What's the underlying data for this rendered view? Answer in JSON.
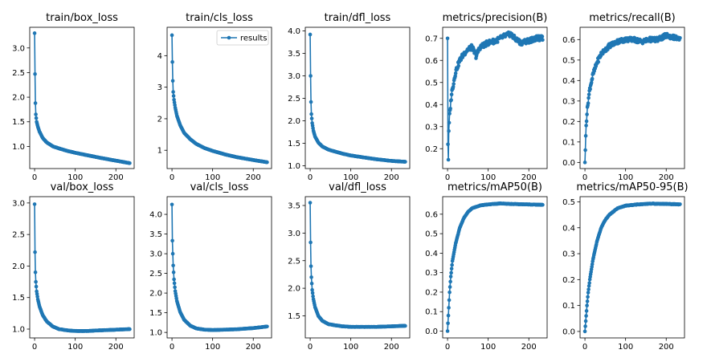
{
  "figure": {
    "legend_label": "results",
    "legend_location": "upper-right of second panel"
  },
  "colors": {
    "series": "#1f77b4",
    "axis": "#000000",
    "legend_border": "#cccccc"
  },
  "chart_data": [
    {
      "type": "line",
      "title": "train/box_loss",
      "xlim": [
        -12,
        245
      ],
      "ylim": [
        0.55,
        3.42
      ],
      "xticks": [
        0,
        100,
        200
      ],
      "yticks": [
        1.0,
        1.5,
        2.0,
        2.5,
        3.0
      ],
      "xticklabels": [
        "0",
        "100",
        "200"
      ],
      "yticklabels": [
        "1.0",
        "1.5",
        "2.0",
        "2.5",
        "3.0"
      ],
      "curve": {
        "kind": "decay",
        "n": 235,
        "points": [
          [
            0,
            3.3
          ],
          [
            1,
            2.47
          ],
          [
            2,
            1.88
          ],
          [
            3,
            1.65
          ],
          [
            5,
            1.5
          ],
          [
            8,
            1.4
          ],
          [
            12,
            1.3
          ],
          [
            20,
            1.17
          ],
          [
            30,
            1.08
          ],
          [
            45,
            1.0
          ],
          [
            60,
            0.96
          ],
          [
            80,
            0.91
          ],
          [
            100,
            0.87
          ],
          [
            130,
            0.82
          ],
          [
            160,
            0.77
          ],
          [
            200,
            0.71
          ],
          [
            234,
            0.66
          ]
        ]
      }
    },
    {
      "type": "line",
      "title": "train/cls_loss",
      "xlim": [
        -12,
        245
      ],
      "ylim": [
        0.42,
        4.9
      ],
      "xticks": [
        0,
        100,
        200
      ],
      "yticks": [
        1,
        2,
        3,
        4
      ],
      "xticklabels": [
        "0",
        "100",
        "200"
      ],
      "yticklabels": [
        "1",
        "2",
        "3",
        "4"
      ],
      "legend": true,
      "curve": {
        "kind": "decay",
        "n": 235,
        "points": [
          [
            0,
            4.65
          ],
          [
            1,
            3.8
          ],
          [
            2,
            3.2
          ],
          [
            3,
            2.85
          ],
          [
            5,
            2.6
          ],
          [
            8,
            2.35
          ],
          [
            12,
            2.1
          ],
          [
            20,
            1.8
          ],
          [
            30,
            1.55
          ],
          [
            45,
            1.35
          ],
          [
            60,
            1.2
          ],
          [
            80,
            1.07
          ],
          [
            100,
            0.98
          ],
          [
            130,
            0.87
          ],
          [
            160,
            0.78
          ],
          [
            200,
            0.69
          ],
          [
            234,
            0.62
          ]
        ]
      }
    },
    {
      "type": "line",
      "title": "train/dfl_loss",
      "xlim": [
        -12,
        245
      ],
      "ylim": [
        0.94,
        4.08
      ],
      "xticks": [
        0,
        100,
        200
      ],
      "yticks": [
        1.0,
        1.5,
        2.0,
        2.5,
        3.0,
        3.5,
        4.0
      ],
      "xticklabels": [
        "0",
        "100",
        "200"
      ],
      "yticklabels": [
        "1.0",
        "1.5",
        "2.0",
        "2.5",
        "3.0",
        "3.5",
        "4.0"
      ],
      "curve": {
        "kind": "decay",
        "n": 235,
        "points": [
          [
            0,
            3.92
          ],
          [
            1,
            3.0
          ],
          [
            2,
            2.42
          ],
          [
            3,
            2.15
          ],
          [
            5,
            1.95
          ],
          [
            8,
            1.78
          ],
          [
            12,
            1.65
          ],
          [
            20,
            1.52
          ],
          [
            30,
            1.43
          ],
          [
            45,
            1.36
          ],
          [
            60,
            1.32
          ],
          [
            80,
            1.27
          ],
          [
            100,
            1.23
          ],
          [
            130,
            1.19
          ],
          [
            160,
            1.15
          ],
          [
            200,
            1.11
          ],
          [
            234,
            1.09
          ]
        ]
      }
    },
    {
      "type": "line",
      "title": "metrics/precision(B)",
      "xlim": [
        -12,
        245
      ],
      "ylim": [
        0.11,
        0.75
      ],
      "xticks": [
        0,
        100,
        200
      ],
      "yticks": [
        0.2,
        0.3,
        0.4,
        0.5,
        0.6,
        0.7
      ],
      "xticklabels": [
        "0",
        "100",
        "200"
      ],
      "yticklabels": [
        "0.2",
        "0.3",
        "0.4",
        "0.5",
        "0.6",
        "0.7"
      ],
      "curve": {
        "kind": "noisy_rise",
        "n": 235,
        "points": [
          [
            0,
            0.7
          ],
          [
            1,
            0.22
          ],
          [
            2,
            0.15
          ],
          [
            3,
            0.28
          ],
          [
            5,
            0.35
          ],
          [
            10,
            0.45
          ],
          [
            20,
            0.55
          ],
          [
            30,
            0.6
          ],
          [
            40,
            0.63
          ],
          [
            50,
            0.65
          ],
          [
            60,
            0.66
          ],
          [
            70,
            0.62
          ],
          [
            80,
            0.66
          ],
          [
            100,
            0.68
          ],
          [
            120,
            0.69
          ],
          [
            140,
            0.71
          ],
          [
            155,
            0.72
          ],
          [
            165,
            0.7
          ],
          [
            180,
            0.68
          ],
          [
            200,
            0.69
          ],
          [
            220,
            0.7
          ],
          [
            234,
            0.7
          ]
        ]
      }
    },
    {
      "type": "line",
      "title": "metrics/recall(B)",
      "xlim": [
        -12,
        245
      ],
      "ylim": [
        -0.03,
        0.66
      ],
      "xticks": [
        0,
        100,
        200
      ],
      "yticks": [
        0.0,
        0.1,
        0.2,
        0.3,
        0.4,
        0.5,
        0.6
      ],
      "xticklabels": [
        "0",
        "100",
        "200"
      ],
      "yticklabels": [
        "0.0",
        "0.1",
        "0.2",
        "0.3",
        "0.4",
        "0.5",
        "0.6"
      ],
      "curve": {
        "kind": "noisy_rise",
        "n": 235,
        "points": [
          [
            0,
            0.0
          ],
          [
            1,
            0.06
          ],
          [
            2,
            0.13
          ],
          [
            3,
            0.18
          ],
          [
            5,
            0.24
          ],
          [
            8,
            0.3
          ],
          [
            12,
            0.36
          ],
          [
            20,
            0.43
          ],
          [
            30,
            0.49
          ],
          [
            40,
            0.53
          ],
          [
            50,
            0.55
          ],
          [
            60,
            0.57
          ],
          [
            80,
            0.59
          ],
          [
            100,
            0.6
          ],
          [
            120,
            0.6
          ],
          [
            140,
            0.59
          ],
          [
            160,
            0.6
          ],
          [
            180,
            0.6
          ],
          [
            200,
            0.62
          ],
          [
            220,
            0.61
          ],
          [
            234,
            0.6
          ]
        ]
      }
    },
    {
      "type": "line",
      "title": "val/box_loss",
      "xlim": [
        -12,
        245
      ],
      "ylim": [
        0.86,
        3.1
      ],
      "xticks": [
        0,
        100,
        200
      ],
      "yticks": [
        1.0,
        1.5,
        2.0,
        2.5,
        3.0
      ],
      "xticklabels": [
        "0",
        "100",
        "200"
      ],
      "yticklabels": [
        "1.0",
        "1.5",
        "2.0",
        "2.5",
        "3.0"
      ],
      "curve": {
        "kind": "decay",
        "n": 235,
        "points": [
          [
            0,
            2.98
          ],
          [
            1,
            2.22
          ],
          [
            2,
            1.9
          ],
          [
            3,
            1.75
          ],
          [
            5,
            1.6
          ],
          [
            8,
            1.47
          ],
          [
            12,
            1.36
          ],
          [
            20,
            1.22
          ],
          [
            30,
            1.12
          ],
          [
            45,
            1.04
          ],
          [
            60,
            1.0
          ],
          [
            80,
            0.98
          ],
          [
            100,
            0.97
          ],
          [
            130,
            0.97
          ],
          [
            160,
            0.98
          ],
          [
            200,
            0.99
          ],
          [
            234,
            1.0
          ]
        ]
      }
    },
    {
      "type": "line",
      "title": "val/cls_loss",
      "xlim": [
        -12,
        245
      ],
      "ylim": [
        0.86,
        4.45
      ],
      "xticks": [
        0,
        100,
        200
      ],
      "yticks": [
        1.0,
        1.5,
        2.0,
        2.5,
        3.0,
        3.5,
        4.0
      ],
      "xticklabels": [
        "0",
        "100",
        "200"
      ],
      "yticklabels": [
        "1.0",
        "1.5",
        "2.0",
        "2.5",
        "3.0",
        "3.5",
        "4.0"
      ],
      "curve": {
        "kind": "decay",
        "n": 235,
        "points": [
          [
            0,
            4.25
          ],
          [
            1,
            3.33
          ],
          [
            2,
            3.0
          ],
          [
            3,
            2.7
          ],
          [
            5,
            2.35
          ],
          [
            8,
            2.05
          ],
          [
            12,
            1.8
          ],
          [
            20,
            1.52
          ],
          [
            30,
            1.32
          ],
          [
            45,
            1.17
          ],
          [
            60,
            1.1
          ],
          [
            80,
            1.07
          ],
          [
            100,
            1.06
          ],
          [
            130,
            1.07
          ],
          [
            160,
            1.08
          ],
          [
            200,
            1.11
          ],
          [
            234,
            1.15
          ]
        ]
      }
    },
    {
      "type": "line",
      "title": "val/dfl_loss",
      "xlim": [
        -12,
        245
      ],
      "ylim": [
        1.1,
        3.66
      ],
      "xticks": [
        0,
        100,
        200
      ],
      "yticks": [
        1.5,
        2.0,
        2.5,
        3.0,
        3.5
      ],
      "xticklabels": [
        "0",
        "100",
        "200"
      ],
      "yticklabels": [
        "1.5",
        "2.0",
        "2.5",
        "3.0",
        "3.5"
      ],
      "curve": {
        "kind": "decay",
        "n": 235,
        "points": [
          [
            0,
            3.55
          ],
          [
            1,
            2.83
          ],
          [
            2,
            2.4
          ],
          [
            3,
            2.2
          ],
          [
            5,
            1.97
          ],
          [
            8,
            1.8
          ],
          [
            12,
            1.66
          ],
          [
            20,
            1.5
          ],
          [
            30,
            1.41
          ],
          [
            45,
            1.35
          ],
          [
            60,
            1.33
          ],
          [
            80,
            1.31
          ],
          [
            100,
            1.3
          ],
          [
            130,
            1.3
          ],
          [
            160,
            1.3
          ],
          [
            200,
            1.31
          ],
          [
            234,
            1.32
          ]
        ]
      }
    },
    {
      "type": "line",
      "title": "metrics/mAP50(B)",
      "xlim": [
        -12,
        245
      ],
      "ylim": [
        -0.035,
        0.69
      ],
      "xticks": [
        0,
        100,
        200
      ],
      "yticks": [
        0.0,
        0.1,
        0.2,
        0.3,
        0.4,
        0.5,
        0.6
      ],
      "xticklabels": [
        "0",
        "100",
        "200"
      ],
      "yticklabels": [
        "0.0",
        "0.1",
        "0.2",
        "0.3",
        "0.4",
        "0.5",
        "0.6"
      ],
      "curve": {
        "kind": "smooth_rise",
        "n": 235,
        "points": [
          [
            0,
            0.0
          ],
          [
            1,
            0.04
          ],
          [
            2,
            0.08
          ],
          [
            3,
            0.12
          ],
          [
            5,
            0.2
          ],
          [
            8,
            0.28
          ],
          [
            12,
            0.36
          ],
          [
            20,
            0.45
          ],
          [
            30,
            0.53
          ],
          [
            40,
            0.58
          ],
          [
            50,
            0.61
          ],
          [
            60,
            0.63
          ],
          [
            80,
            0.645
          ],
          [
            100,
            0.65
          ],
          [
            130,
            0.655
          ],
          [
            160,
            0.652
          ],
          [
            200,
            0.65
          ],
          [
            234,
            0.648
          ]
        ]
      }
    },
    {
      "type": "line",
      "title": "metrics/mAP50-95(B)",
      "xlim": [
        -12,
        245
      ],
      "ylim": [
        -0.025,
        0.52
      ],
      "xticks": [
        0,
        100,
        200
      ],
      "yticks": [
        0.0,
        0.1,
        0.2,
        0.3,
        0.4,
        0.5
      ],
      "xticklabels": [
        "0",
        "100",
        "200"
      ],
      "yticklabels": [
        "0.0",
        "0.1",
        "0.2",
        "0.3",
        "0.4",
        "0.5"
      ],
      "curve": {
        "kind": "smooth_rise",
        "n": 235,
        "points": [
          [
            0,
            0.0
          ],
          [
            1,
            0.02
          ],
          [
            2,
            0.04
          ],
          [
            3,
            0.06
          ],
          [
            5,
            0.1
          ],
          [
            8,
            0.15
          ],
          [
            12,
            0.2
          ],
          [
            20,
            0.28
          ],
          [
            30,
            0.35
          ],
          [
            40,
            0.4
          ],
          [
            50,
            0.43
          ],
          [
            60,
            0.45
          ],
          [
            80,
            0.475
          ],
          [
            100,
            0.485
          ],
          [
            130,
            0.49
          ],
          [
            160,
            0.493
          ],
          [
            200,
            0.492
          ],
          [
            234,
            0.49
          ]
        ]
      }
    }
  ]
}
